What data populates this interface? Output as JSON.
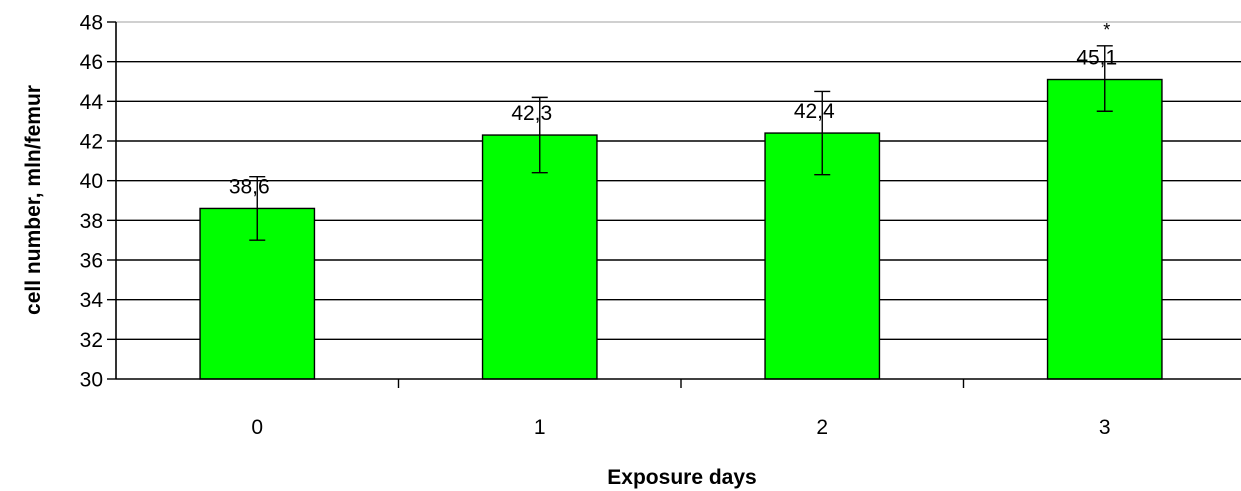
{
  "chart_data": {
    "type": "bar",
    "categories": [
      "0",
      "1",
      "2",
      "3"
    ],
    "values": [
      38.6,
      42.3,
      42.4,
      45.1
    ],
    "value_labels": [
      "38,6",
      "42,3",
      "42,4",
      "45,1"
    ],
    "error_bars": [
      {
        "low": 37.0,
        "high": 40.2
      },
      {
        "low": 40.4,
        "high": 44.2
      },
      {
        "low": 40.3,
        "high": 44.5
      },
      {
        "low": 43.5,
        "high": 46.8
      }
    ],
    "annotations": [
      {
        "category": "3",
        "text": "*"
      }
    ],
    "xlabel": "Exposure days",
    "ylabel": "cell number, mln/femur",
    "ylim": [
      30,
      48
    ],
    "yticks": [
      30,
      32,
      34,
      36,
      38,
      40,
      42,
      44,
      46,
      48
    ],
    "grid": true,
    "legend": "none",
    "colors": {
      "bar": "#00ff00",
      "bar_edge": "#000000",
      "grid": "#000000"
    }
  }
}
